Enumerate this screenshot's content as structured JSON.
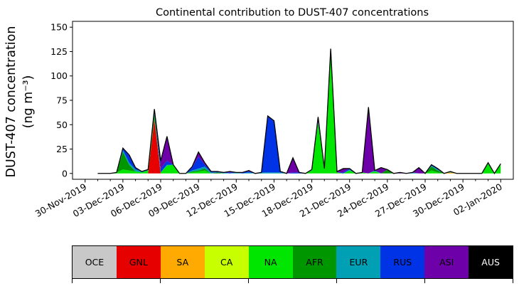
{
  "chart_data": {
    "type": "area",
    "stacked": true,
    "title": "Continental contribution to DUST-407 concentrations",
    "xlabel": "",
    "ylabel": "DUST-407 concentration",
    "ylabel_unit": "(ng m⁻³)",
    "ylim": [
      -6,
      156
    ],
    "xlim": [
      "2019-11-29",
      "2020-01-03"
    ],
    "yticks": [
      0,
      25,
      50,
      75,
      100,
      125,
      150
    ],
    "xtick_labels": [
      "30-Nov-2019",
      "03-Dec-2019",
      "06-Dec-2019",
      "09-Dec-2019",
      "12-Dec-2019",
      "15-Dec-2019",
      "18-Dec-2019",
      "21-Dec-2019",
      "24-Dec-2019",
      "27-Dec-2019",
      "30-Dec-2019",
      "02-Jan-2020"
    ],
    "xtick_dates": [
      "2019-11-30",
      "2019-12-03",
      "2019-12-06",
      "2019-12-09",
      "2019-12-12",
      "2019-12-15",
      "2019-12-18",
      "2019-12-21",
      "2019-12-24",
      "2019-12-27",
      "2019-12-30",
      "2020-01-02"
    ],
    "minor_tick_dates": [
      "2019-12-01",
      "2019-12-02",
      "2019-12-04",
      "2019-12-05",
      "2019-12-07",
      "2019-12-08",
      "2019-12-10",
      "2019-12-11",
      "2019-12-13",
      "2019-12-14",
      "2019-12-16",
      "2019-12-17",
      "2019-12-19",
      "2019-12-20",
      "2019-12-22",
      "2019-12-23",
      "2019-12-25",
      "2019-12-26",
      "2019-12-28",
      "2019-12-29",
      "2019-12-31",
      "2020-01-01"
    ],
    "x": [
      "2019-12-01 00:00",
      "2019-12-01 12:00",
      "2019-12-02 00:00",
      "2019-12-02 12:00",
      "2019-12-03 00:00",
      "2019-12-03 12:00",
      "2019-12-04 00:00",
      "2019-12-04 12:00",
      "2019-12-05 00:00",
      "2019-12-05 12:00",
      "2019-12-06 00:00",
      "2019-12-06 12:00",
      "2019-12-07 00:00",
      "2019-12-07 12:00",
      "2019-12-08 00:00",
      "2019-12-08 12:00",
      "2019-12-09 00:00",
      "2019-12-09 12:00",
      "2019-12-10 00:00",
      "2019-12-10 12:00",
      "2019-12-11 00:00",
      "2019-12-11 12:00",
      "2019-12-12 00:00",
      "2019-12-12 12:00",
      "2019-12-13 00:00",
      "2019-12-13 12:00",
      "2019-12-14 00:00",
      "2019-12-14 12:00",
      "2019-12-15 00:00",
      "2019-12-15 12:00",
      "2019-12-16 00:00",
      "2019-12-16 12:00",
      "2019-12-17 00:00",
      "2019-12-17 12:00",
      "2019-12-18 00:00",
      "2019-12-18 12:00",
      "2019-12-19 00:00",
      "2019-12-19 12:00",
      "2019-12-20 00:00",
      "2019-12-20 12:00",
      "2019-12-21 00:00",
      "2019-12-21 12:00",
      "2019-12-22 00:00",
      "2019-12-22 12:00",
      "2019-12-23 00:00",
      "2019-12-23 12:00",
      "2019-12-24 00:00",
      "2019-12-24 12:00",
      "2019-12-25 00:00",
      "2019-12-25 12:00",
      "2019-12-26 00:00",
      "2019-12-26 12:00",
      "2019-12-27 00:00",
      "2019-12-27 12:00",
      "2019-12-28 00:00",
      "2019-12-28 12:00",
      "2019-12-29 00:00",
      "2019-12-29 12:00",
      "2019-12-30 00:00",
      "2019-12-30 12:00",
      "2019-12-31 00:00",
      "2019-12-31 12:00",
      "2020-01-01 00:00",
      "2020-01-01 12:00",
      "2020-01-02 00:00"
    ],
    "series": [
      {
        "name": "OCE",
        "color": "#c8c8c8",
        "values": [
          0,
          0,
          0,
          0,
          0,
          0,
          0,
          0,
          0,
          0,
          0,
          0,
          0,
          0,
          0,
          0,
          0,
          0,
          0,
          0,
          0,
          0,
          0,
          0,
          0,
          0,
          0,
          0,
          0,
          0,
          0,
          0,
          0,
          0,
          0,
          0,
          0,
          0,
          0,
          0,
          0,
          0,
          0,
          0,
          0,
          0,
          0,
          0,
          0,
          0,
          0,
          0,
          0,
          0,
          0,
          0,
          0,
          0,
          0,
          0,
          0,
          0,
          0,
          0,
          0
        ]
      },
      {
        "name": "GNL",
        "color": "#e60000",
        "values": [
          0,
          0,
          0,
          0,
          0,
          0,
          0,
          0,
          0,
          55,
          0,
          0,
          0,
          0,
          0,
          0,
          0,
          0,
          0,
          0,
          0,
          0,
          0,
          0,
          0,
          0,
          0,
          0,
          0,
          0,
          0,
          0,
          0,
          0,
          0,
          0,
          0,
          0,
          0,
          0,
          0,
          0,
          0,
          0,
          0,
          0,
          0,
          0,
          0,
          0,
          0,
          0,
          0,
          0,
          0,
          0,
          0,
          0,
          0,
          0,
          0,
          0,
          0,
          0,
          0
        ]
      },
      {
        "name": "SA",
        "color": "#ffaa00",
        "values": [
          0,
          0,
          0,
          0,
          0,
          0,
          0,
          0,
          0,
          0,
          0,
          0,
          0,
          0,
          0,
          0,
          0,
          0,
          0,
          0,
          0,
          0,
          0,
          0,
          0,
          0,
          0,
          0,
          0,
          0,
          0,
          0,
          0,
          0,
          0,
          0,
          0,
          0,
          0,
          0,
          0,
          0,
          0,
          0,
          0,
          0,
          0,
          0,
          0,
          0,
          0,
          0,
          0,
          0,
          0,
          0,
          1,
          0,
          0,
          0,
          0,
          0,
          0,
          0,
          0
        ]
      },
      {
        "name": "CA",
        "color": "#c8ff00",
        "values": [
          0,
          0,
          0,
          0,
          0,
          0,
          0,
          0,
          0,
          0,
          0,
          0,
          0,
          0,
          0,
          0,
          0,
          0,
          0,
          0,
          0,
          0,
          0,
          0,
          0,
          0,
          0,
          0,
          0,
          0,
          0,
          0,
          0,
          0,
          0,
          0,
          0,
          0,
          0,
          0,
          0,
          0,
          0,
          0,
          0,
          0,
          0,
          0,
          0,
          0,
          0,
          0,
          0,
          0,
          0,
          0,
          0,
          0,
          0,
          0,
          0,
          0,
          0,
          0,
          0
        ]
      },
      {
        "name": "NA",
        "color": "#00e600",
        "values": [
          0,
          0,
          0,
          1,
          4,
          3,
          2,
          1,
          3,
          1,
          1,
          8,
          9,
          0,
          0,
          1,
          2,
          3,
          0,
          0,
          0,
          0,
          0,
          0,
          0,
          0,
          0,
          0,
          0,
          0,
          0,
          0,
          0,
          0,
          3,
          52,
          5,
          127,
          1,
          0,
          3,
          0,
          1,
          0,
          2,
          0,
          0,
          0,
          0,
          0,
          0,
          0,
          0,
          3,
          1,
          0,
          0,
          0,
          0,
          0,
          0,
          0,
          10,
          0,
          10
        ]
      },
      {
        "name": "AFR",
        "color": "#009600",
        "values": [
          0,
          0,
          0,
          0,
          18,
          6,
          0,
          0,
          0,
          5,
          0,
          0,
          0,
          0,
          0,
          1,
          1,
          2,
          0,
          1,
          0,
          0,
          0,
          0,
          0,
          0,
          0,
          0,
          0,
          0,
          0,
          0,
          0,
          0,
          0,
          0,
          0,
          0,
          0,
          0,
          0,
          0,
          0,
          0,
          0,
          0,
          4,
          0,
          0,
          0,
          0,
          0,
          0,
          4,
          2,
          0,
          0,
          0,
          0,
          0,
          0,
          0,
          0,
          0,
          0
        ]
      },
      {
        "name": "EUR",
        "color": "#00a0b4",
        "values": [
          0,
          0,
          0,
          0,
          2,
          2,
          2,
          1,
          1,
          1,
          0,
          1,
          0,
          0,
          0,
          1,
          2,
          2,
          1,
          0,
          1,
          0,
          1,
          0,
          1,
          0,
          1,
          1,
          1,
          1,
          0,
          0,
          0,
          0,
          1,
          1,
          0,
          1,
          0,
          0,
          1,
          0,
          0,
          0,
          1,
          0,
          0,
          0,
          0,
          0,
          1,
          0,
          0,
          1,
          1,
          0,
          1,
          0,
          0,
          0,
          0,
          0,
          1,
          0,
          0
        ]
      },
      {
        "name": "RUS",
        "color": "#0032e6",
        "values": [
          0,
          0,
          0,
          0,
          2,
          7,
          2,
          0,
          0,
          3,
          4,
          4,
          0,
          0,
          0,
          3,
          12,
          2,
          1,
          1,
          0,
          1,
          0,
          1,
          1,
          0,
          0,
          58,
          52,
          1,
          0,
          1,
          1,
          0,
          0,
          0,
          0,
          0,
          0,
          1,
          1,
          0,
          0,
          0,
          0,
          0,
          0,
          0,
          0,
          0,
          0,
          0,
          0,
          1,
          1,
          0,
          0,
          0,
          0,
          0,
          0,
          0,
          0,
          0,
          0
        ]
      },
      {
        "name": "ASI",
        "color": "#6e00aa",
        "values": [
          0,
          0,
          0,
          0,
          0,
          1,
          0,
          0,
          0,
          1,
          8,
          25,
          0,
          0,
          0,
          1,
          5,
          2,
          0,
          0,
          0,
          1,
          0,
          0,
          1,
          0,
          0,
          0,
          1,
          0,
          0,
          15,
          0,
          0,
          0,
          5,
          0,
          0,
          1,
          4,
          0,
          0,
          0,
          68,
          0,
          6,
          0,
          0,
          1,
          0,
          0,
          6,
          0,
          0,
          0,
          0,
          0,
          0,
          0,
          0,
          0,
          0,
          0,
          0,
          0
        ]
      },
      {
        "name": "AUS",
        "color": "#000000",
        "values": [
          0,
          0,
          0,
          0,
          0,
          0,
          0,
          0,
          0,
          0,
          0,
          0,
          0,
          0,
          0,
          0,
          0,
          0,
          0,
          0,
          0,
          0,
          0,
          0,
          0,
          0,
          0,
          0,
          0,
          0,
          0,
          0,
          0,
          0,
          0,
          0,
          0,
          0,
          0,
          0,
          0,
          0,
          0,
          0,
          0,
          0,
          0,
          0,
          0,
          0,
          0,
          0,
          0,
          0,
          0,
          0,
          0,
          0,
          0,
          0,
          0,
          0,
          0,
          0,
          0
        ]
      }
    ]
  }
}
